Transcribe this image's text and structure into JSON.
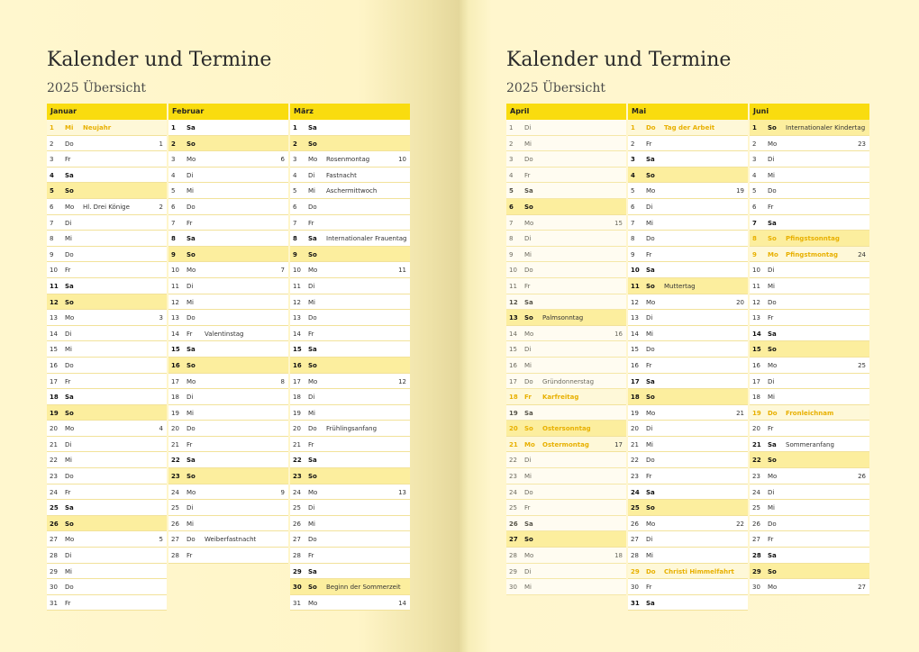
{
  "left": {
    "title": "Kalender und Termine",
    "subtitle": "2025 Übersicht",
    "months": [
      {
        "name": "Januar",
        "start": 3,
        "days": 31,
        "events": {
          "1": "Neujahr",
          "6": "Hl. Drei Könige"
        },
        "holidays": [
          1
        ],
        "kw": {
          "2": "1",
          "6": "2",
          "13": "3",
          "20": "4",
          "27": "5"
        }
      },
      {
        "name": "Februar",
        "start": 6,
        "days": 28,
        "events": {
          "14": "Valentinstag",
          "27": "Weiberfastnacht"
        },
        "holidays": [],
        "kw": {
          "3": "6",
          "10": "7",
          "17": "8",
          "24": "9"
        }
      },
      {
        "name": "März",
        "start": 6,
        "days": 31,
        "events": {
          "3": "Rosenmontag",
          "4": "Fastnacht",
          "5": "Aschermittwoch",
          "8": "Internationaler Frauentag",
          "20": "Frühlingsanfang",
          "30": "Beginn der Sommerzeit"
        },
        "holidays": [],
        "kw": {
          "3": "10",
          "10": "11",
          "17": "12",
          "24": "13",
          "31": "14"
        }
      }
    ]
  },
  "right": {
    "title": "Kalender und Termine",
    "subtitle": "2025 Übersicht",
    "months": [
      {
        "name": "April",
        "start": 2,
        "days": 30,
        "events": {
          "13": "Palmsonntag",
          "17": "Gründonnerstag",
          "18": "Karfreitag",
          "20": "Ostersonntag",
          "21": "Ostermontag"
        },
        "holidays": [
          18,
          20,
          21
        ],
        "kw": {
          "7": "15",
          "14": "16",
          "21": "17",
          "28": "18"
        },
        "faded": true
      },
      {
        "name": "Mai",
        "start": 4,
        "days": 31,
        "events": {
          "1": "Tag der Arbeit",
          "11": "Muttertag",
          "29": "Christi Himmelfahrt"
        },
        "holidays": [
          1,
          29
        ],
        "kw": {
          "5": "19",
          "12": "20",
          "19": "21",
          "26": "22"
        }
      },
      {
        "name": "Juni",
        "start": 0,
        "days": 30,
        "events": {
          "1": "Internationaler Kindertag",
          "8": "Pfingstsonntag",
          "9": "Pfingstmontag",
          "19": "Fronleichnam",
          "21": "Sommeranfang"
        },
        "holidays": [
          8,
          9,
          19
        ],
        "kw": {
          "2": "23",
          "9": "24",
          "16": "25",
          "23": "26",
          "30": "27"
        }
      }
    ]
  },
  "weekdays": [
    "So",
    "Mo",
    "Di",
    "Mi",
    "Do",
    "Fr",
    "Sa"
  ],
  "colors": {
    "accent": "#f9dc0f",
    "sunday": "#fcee9e",
    "holiday": "#e8b000"
  }
}
